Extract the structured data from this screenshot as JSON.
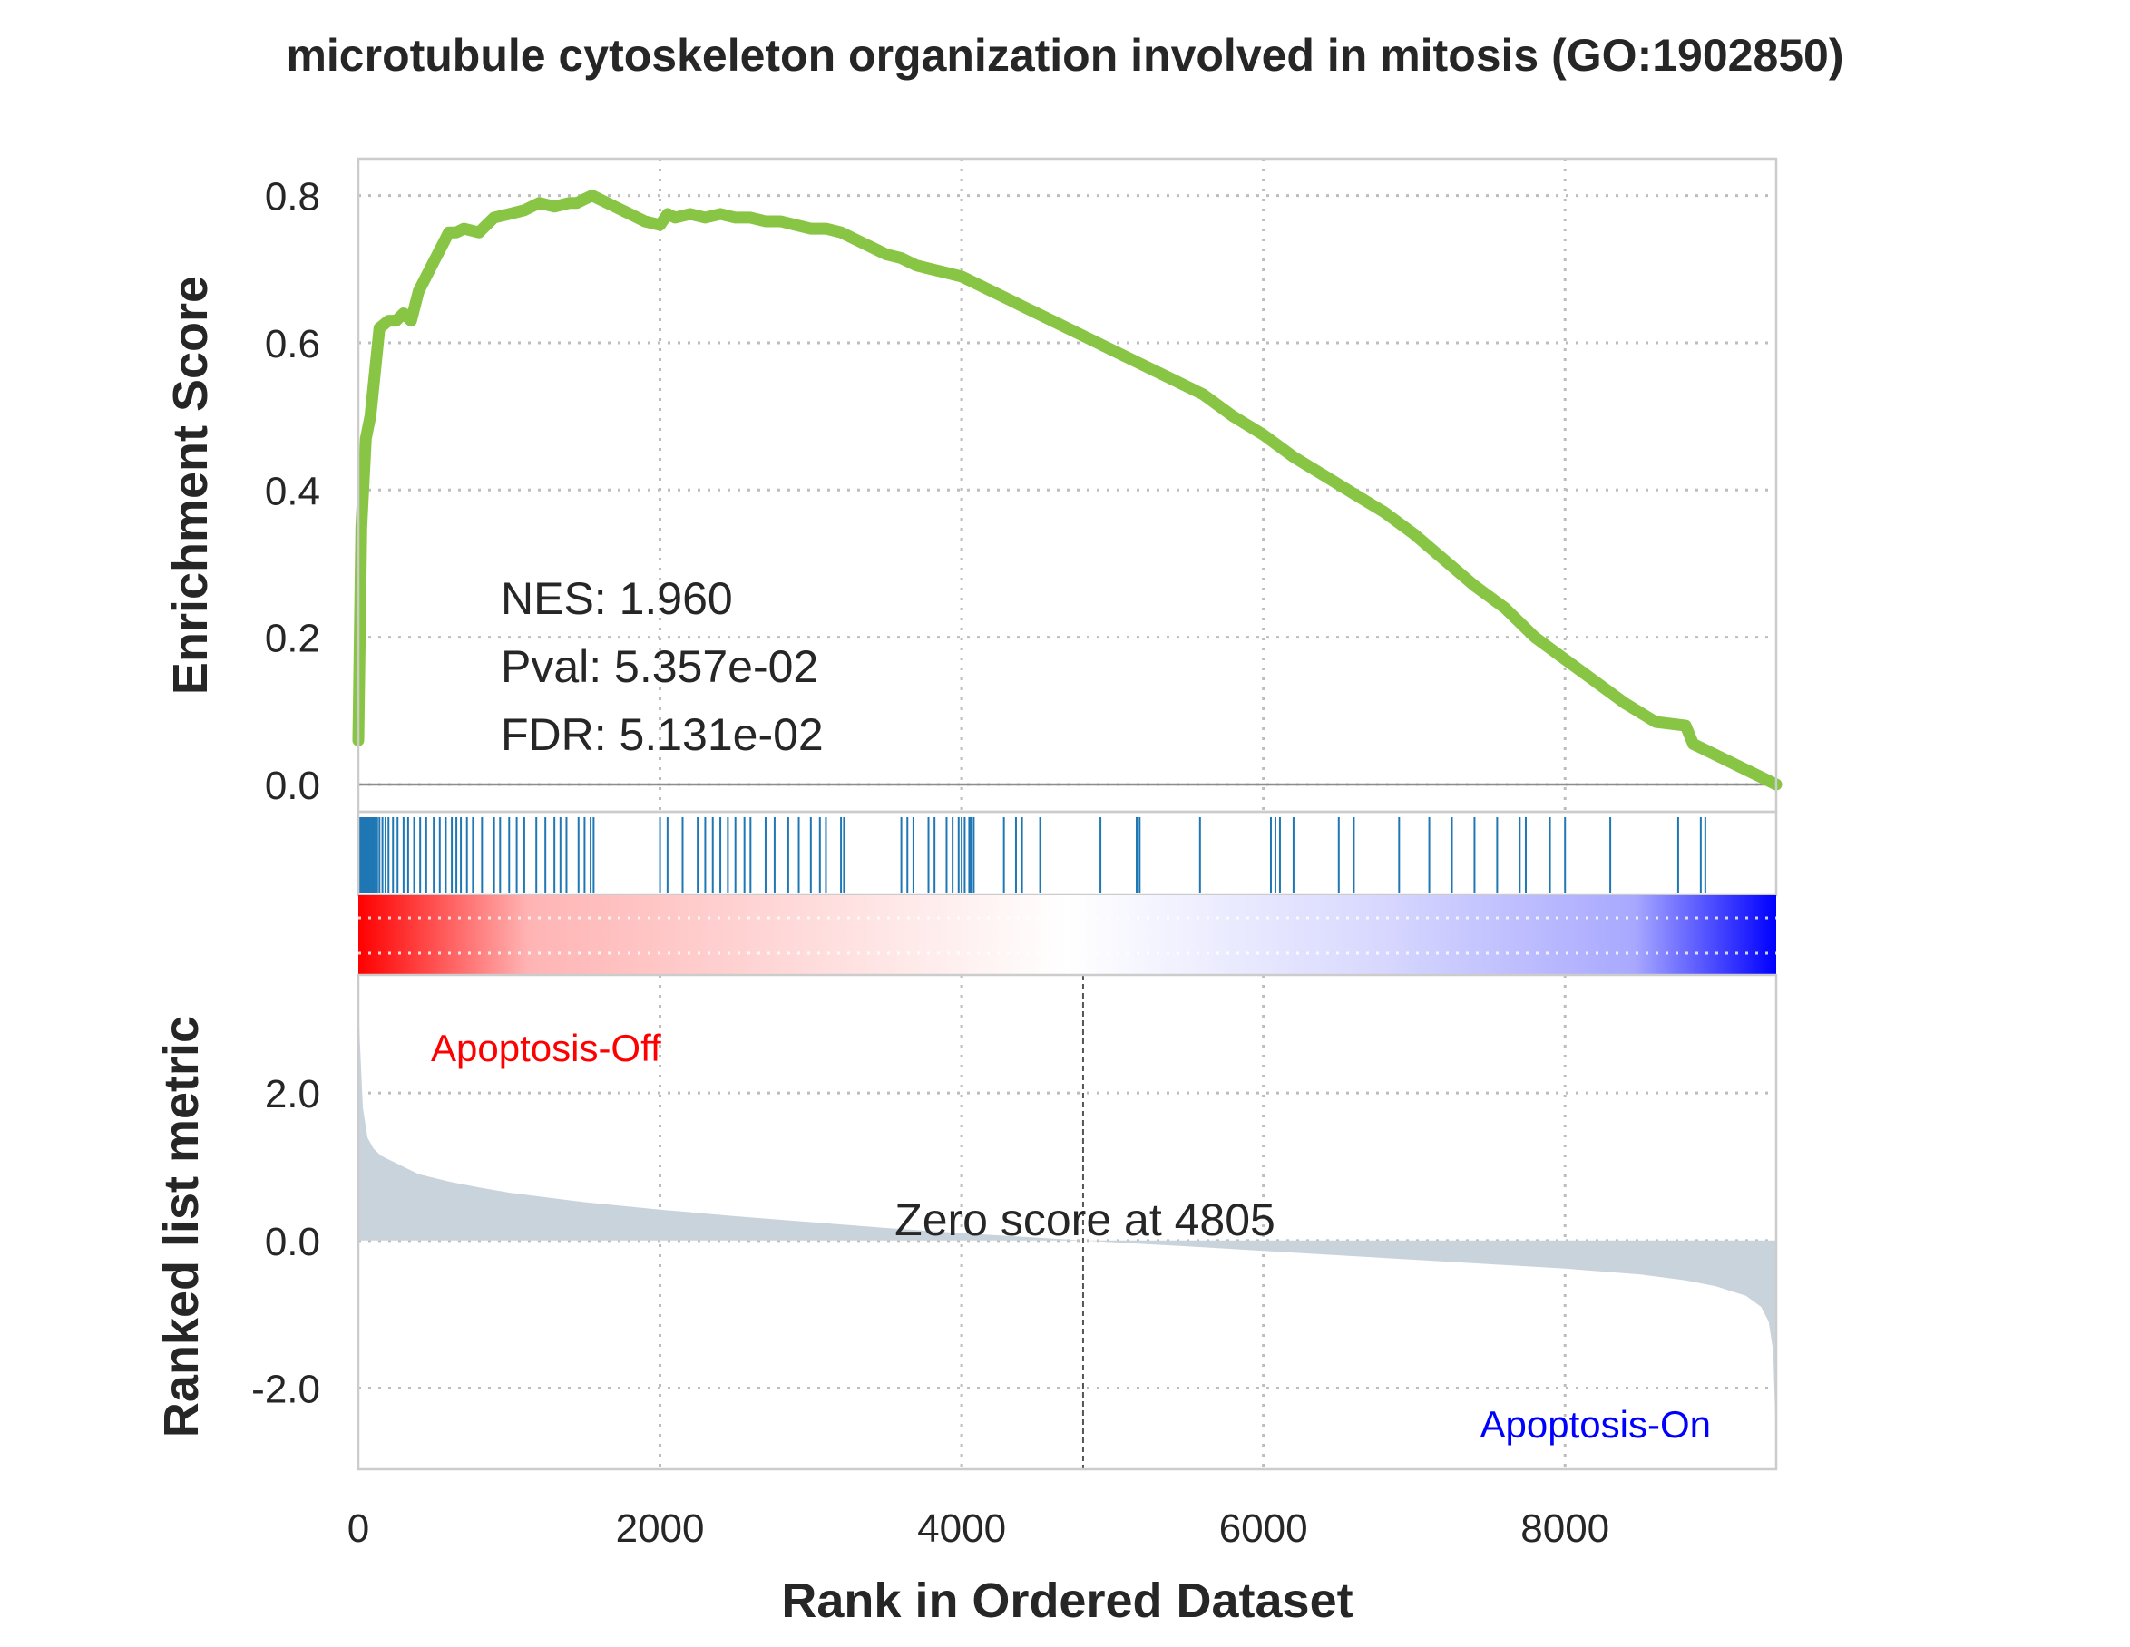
{
  "chart_data": {
    "type": "line",
    "title": "microtubule cytoskeleton organization involved in mitosis (GO:1902850)",
    "xlabel": "Rank in Ordered Dataset",
    "xlim": [
      0,
      9400
    ],
    "xticks": [
      0,
      2000,
      4000,
      6000,
      8000
    ],
    "xtick_labels": [
      "0",
      "2000",
      "4000",
      "6000",
      "8000"
    ],
    "grid": true,
    "es_panel": {
      "ylabel": "Enrichment Score",
      "ylim": [
        0,
        0.85
      ],
      "yticks": [
        0,
        0.2,
        0.4,
        0.6,
        0.8
      ],
      "ytick_labels": [
        "0.0",
        "0.2",
        "0.4",
        "0.6",
        "0.8"
      ],
      "line_color": "#88c544",
      "series": [
        {
          "x": [
            0,
            20,
            50,
            80,
            110,
            140,
            200,
            250,
            300,
            350,
            400,
            450,
            500,
            550,
            600,
            650,
            700,
            800,
            900,
            1000,
            1100,
            1200,
            1300,
            1400,
            1450,
            1500,
            1550,
            1600,
            1700,
            1800,
            1900,
            2000,
            2050,
            2100,
            2200,
            2300,
            2400,
            2500,
            2600,
            2700,
            2800,
            2900,
            3000,
            3100,
            3200,
            3300,
            3400,
            3500,
            3600,
            3700,
            3800,
            3900,
            4000,
            4100,
            4200,
            4300,
            4400,
            4600,
            4800,
            5000,
            5200,
            5400,
            5600,
            5800,
            6000,
            6200,
            6400,
            6600,
            6800,
            7000,
            7200,
            7400,
            7600,
            7800,
            8000,
            8200,
            8400,
            8600,
            8800,
            8850,
            8900,
            9100,
            9400
          ],
          "values": [
            0.06,
            0.35,
            0.47,
            0.5,
            0.56,
            0.62,
            0.63,
            0.63,
            0.64,
            0.63,
            0.67,
            0.69,
            0.71,
            0.73,
            0.75,
            0.75,
            0.755,
            0.75,
            0.77,
            0.775,
            0.78,
            0.79,
            0.785,
            0.79,
            0.79,
            0.795,
            0.8,
            0.795,
            0.785,
            0.775,
            0.765,
            0.76,
            0.775,
            0.77,
            0.775,
            0.77,
            0.775,
            0.77,
            0.77,
            0.765,
            0.765,
            0.76,
            0.755,
            0.755,
            0.75,
            0.74,
            0.73,
            0.72,
            0.715,
            0.705,
            0.7,
            0.695,
            0.69,
            0.68,
            0.67,
            0.66,
            0.65,
            0.63,
            0.61,
            0.59,
            0.57,
            0.55,
            0.53,
            0.5,
            0.475,
            0.445,
            0.42,
            0.395,
            0.37,
            0.34,
            0.305,
            0.27,
            0.24,
            0.2,
            0.17,
            0.14,
            0.11,
            0.085,
            0.08,
            0.055,
            0.05,
            0.03,
            0.0
          ]
        }
      ],
      "stats": [
        "NES: 1.960",
        "Pval: 5.357e-02",
        "FDR: 5.131e-02"
      ]
    },
    "hit_panel": {
      "color": "#1f77b4",
      "hits": [
        5,
        15,
        25,
        35,
        45,
        55,
        65,
        75,
        85,
        95,
        105,
        115,
        125,
        140,
        160,
        180,
        200,
        230,
        260,
        300,
        330,
        370,
        410,
        450,
        500,
        540,
        580,
        620,
        650,
        680,
        720,
        760,
        820,
        900,
        940,
        1000,
        1050,
        1100,
        1180,
        1240,
        1300,
        1340,
        1380,
        1460,
        1500,
        1540,
        1560,
        2000,
        2050,
        2150,
        2250,
        2300,
        2350,
        2400,
        2450,
        2500,
        2560,
        2600,
        2700,
        2760,
        2850,
        2920,
        3000,
        3060,
        3100,
        3200,
        3220,
        3600,
        3640,
        3680,
        3780,
        3820,
        3900,
        3940,
        3980,
        4000,
        4020,
        4050,
        4060,
        4080,
        4280,
        4360,
        4400,
        4520,
        4920,
        5160,
        5180,
        5580,
        6050,
        6080,
        6110,
        6200,
        6500,
        6600,
        6900,
        7100,
        7250,
        7400,
        7550,
        7700,
        7740,
        7900,
        8000,
        8300,
        8750,
        8900,
        8930
      ]
    },
    "metric_panel": {
      "ylabel": "Ranked list metric",
      "ylim": [
        -3.1,
        3.6
      ],
      "yticks": [
        2.0,
        0.0,
        -2.0
      ],
      "ytick_labels": [
        "2.0",
        "0.0",
        "-2.0"
      ],
      "fill_color": "#c9d3dc",
      "zero_cross": 4805,
      "zero_label": "Zero score at 4805",
      "pos_label": "Apoptosis-Off",
      "pos_color": "#ff0000",
      "neg_label": "Apoptosis-On",
      "neg_color": "#0000ff",
      "x": [
        0,
        10,
        30,
        60,
        100,
        150,
        200,
        300,
        400,
        600,
        800,
        1000,
        1500,
        2000,
        2500,
        3000,
        3500,
        4000,
        4500,
        4805,
        5500,
        6000,
        6500,
        7000,
        7500,
        8000,
        8500,
        8800,
        9000,
        9200,
        9300,
        9350,
        9380,
        9400
      ],
      "values": [
        3.3,
        2.7,
        1.8,
        1.4,
        1.25,
        1.15,
        1.1,
        1.0,
        0.9,
        0.8,
        0.72,
        0.65,
        0.52,
        0.42,
        0.33,
        0.25,
        0.17,
        0.1,
        0.04,
        0.0,
        -0.08,
        -0.14,
        -0.2,
        -0.26,
        -0.32,
        -0.38,
        -0.46,
        -0.54,
        -0.62,
        -0.75,
        -0.9,
        -1.1,
        -1.5,
        -2.8
      ]
    }
  }
}
